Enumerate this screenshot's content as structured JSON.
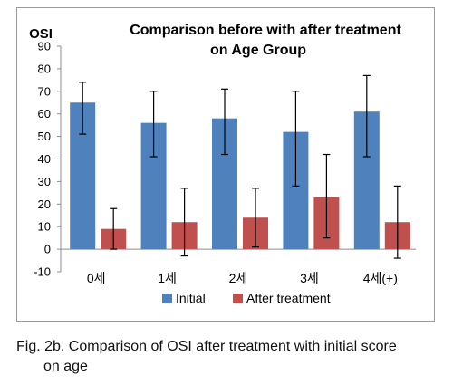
{
  "chart_data": {
    "type": "bar",
    "title": "Comparison before with after treatment",
    "subtitle": "on Age Group",
    "ylabel": "OSI",
    "ylim": [
      -10,
      90
    ],
    "yticks": [
      -10,
      0,
      10,
      20,
      30,
      40,
      50,
      60,
      70,
      80,
      90
    ],
    "categories": [
      "0세",
      "1세",
      "2세",
      "3세",
      "4세(+)"
    ],
    "series": [
      {
        "name": "Initial",
        "color": "#4F81BD",
        "values": [
          65,
          56,
          58,
          52,
          61
        ],
        "error_low": [
          51,
          41,
          42,
          28,
          41
        ],
        "error_high": [
          74,
          70,
          71,
          70,
          77
        ]
      },
      {
        "name": "After treatment",
        "color": "#C0504D",
        "values": [
          9,
          12,
          14,
          23,
          12
        ],
        "error_low": [
          0,
          -3,
          1,
          5,
          -4
        ],
        "error_high": [
          18,
          27,
          27,
          42,
          28
        ]
      }
    ],
    "grid": false,
    "legend_position": "bottom"
  },
  "caption": {
    "line1": "Fig. 2b. Comparison of OSI after treatment with initial score",
    "line2": "on age"
  }
}
